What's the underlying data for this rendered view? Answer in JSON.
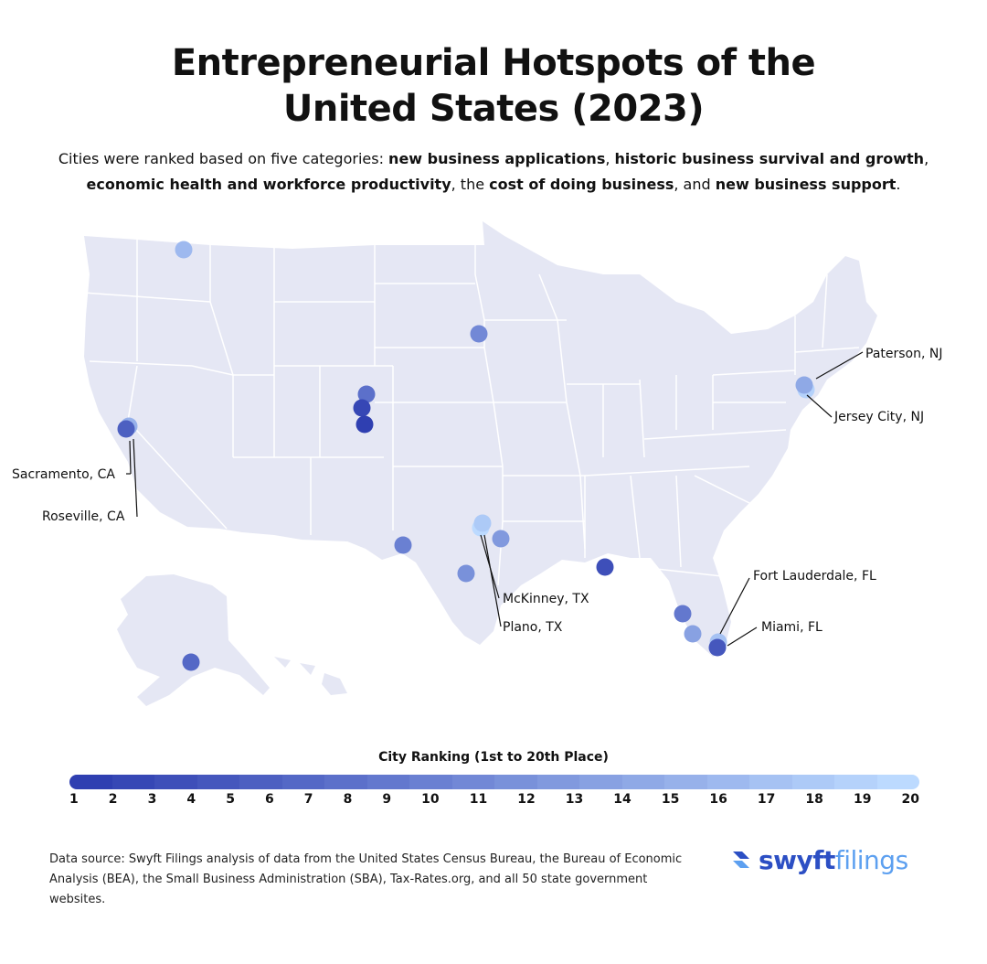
{
  "title_line1": "Entrepreneurial Hotspots of the",
  "title_line2": "United States (2023)",
  "subtitle": {
    "t1": "Cities were ranked based on five categories: ",
    "b1": "new business applications",
    "t2": ", ",
    "b2": "historic business survival and growth",
    "t3": ",",
    "b3": "economic health and workforce productivity",
    "t4": ", the ",
    "b4": "cost of doing business",
    "t5": ", and ",
    "b5": "new business support",
    "t6": "."
  },
  "colors": {
    "map_fill": "#e5e7f4",
    "state_border": "#ffffff",
    "rank_1": "#2f3fb1",
    "rank_20": "#bcdaff"
  },
  "legend": {
    "title": "City Ranking (1st to 20th Place)",
    "ticks": [
      "1",
      "2",
      "3",
      "4",
      "5",
      "6",
      "7",
      "8",
      "9",
      "10",
      "11",
      "12",
      "13",
      "14",
      "15",
      "16",
      "17",
      "18",
      "19",
      "20"
    ]
  },
  "cities": [
    {
      "name": "",
      "rank": 1,
      "label": ""
    },
    {
      "name": "",
      "rank": 2,
      "label": ""
    },
    {
      "name": "",
      "rank": 3,
      "label": ""
    },
    {
      "name": "",
      "rank": 4,
      "label": ""
    },
    {
      "name": "",
      "rank": 5,
      "label": ""
    },
    {
      "name": "",
      "rank": 6,
      "label": ""
    },
    {
      "name": "",
      "rank": 7,
      "label": ""
    },
    {
      "name": "",
      "rank": 8,
      "label": ""
    },
    {
      "name": "",
      "rank": 9,
      "label": ""
    },
    {
      "name": "",
      "rank": 10,
      "label": ""
    },
    {
      "name": "",
      "rank": 11,
      "label": ""
    },
    {
      "name": "",
      "rank": 12,
      "label": ""
    },
    {
      "name": "",
      "rank": 13,
      "label": ""
    },
    {
      "name": "",
      "rank": 14,
      "label": ""
    },
    {
      "name": "",
      "rank": 15,
      "label": ""
    },
    {
      "name": "",
      "rank": 16,
      "label": ""
    },
    {
      "name": "",
      "rank": 17,
      "label": ""
    },
    {
      "name": "",
      "rank": 18,
      "label": ""
    },
    {
      "name": "",
      "rank": 19,
      "label": ""
    },
    {
      "name": "",
      "rank": 20,
      "label": ""
    }
  ],
  "labels": {
    "paterson": "Paterson, NJ",
    "jersey_city": "Jersey City, NJ",
    "sacramento": "Sacramento, CA",
    "roseville": "Roseville, CA",
    "mckinney": "McKinney, TX",
    "plano": "Plano, TX",
    "fort_lauderdale": "Fort Lauderdale, FL",
    "miami": "Miami, FL"
  },
  "source": "Data source: Swyft Filings analysis of data from the United States Census Bureau, the Bureau of Economic Analysis (BEA), the Small Business Administration (SBA), Tax-Rates.org, and all 50 state government websites.",
  "logo": {
    "part1": "swyft",
    "part2": "filings"
  }
}
